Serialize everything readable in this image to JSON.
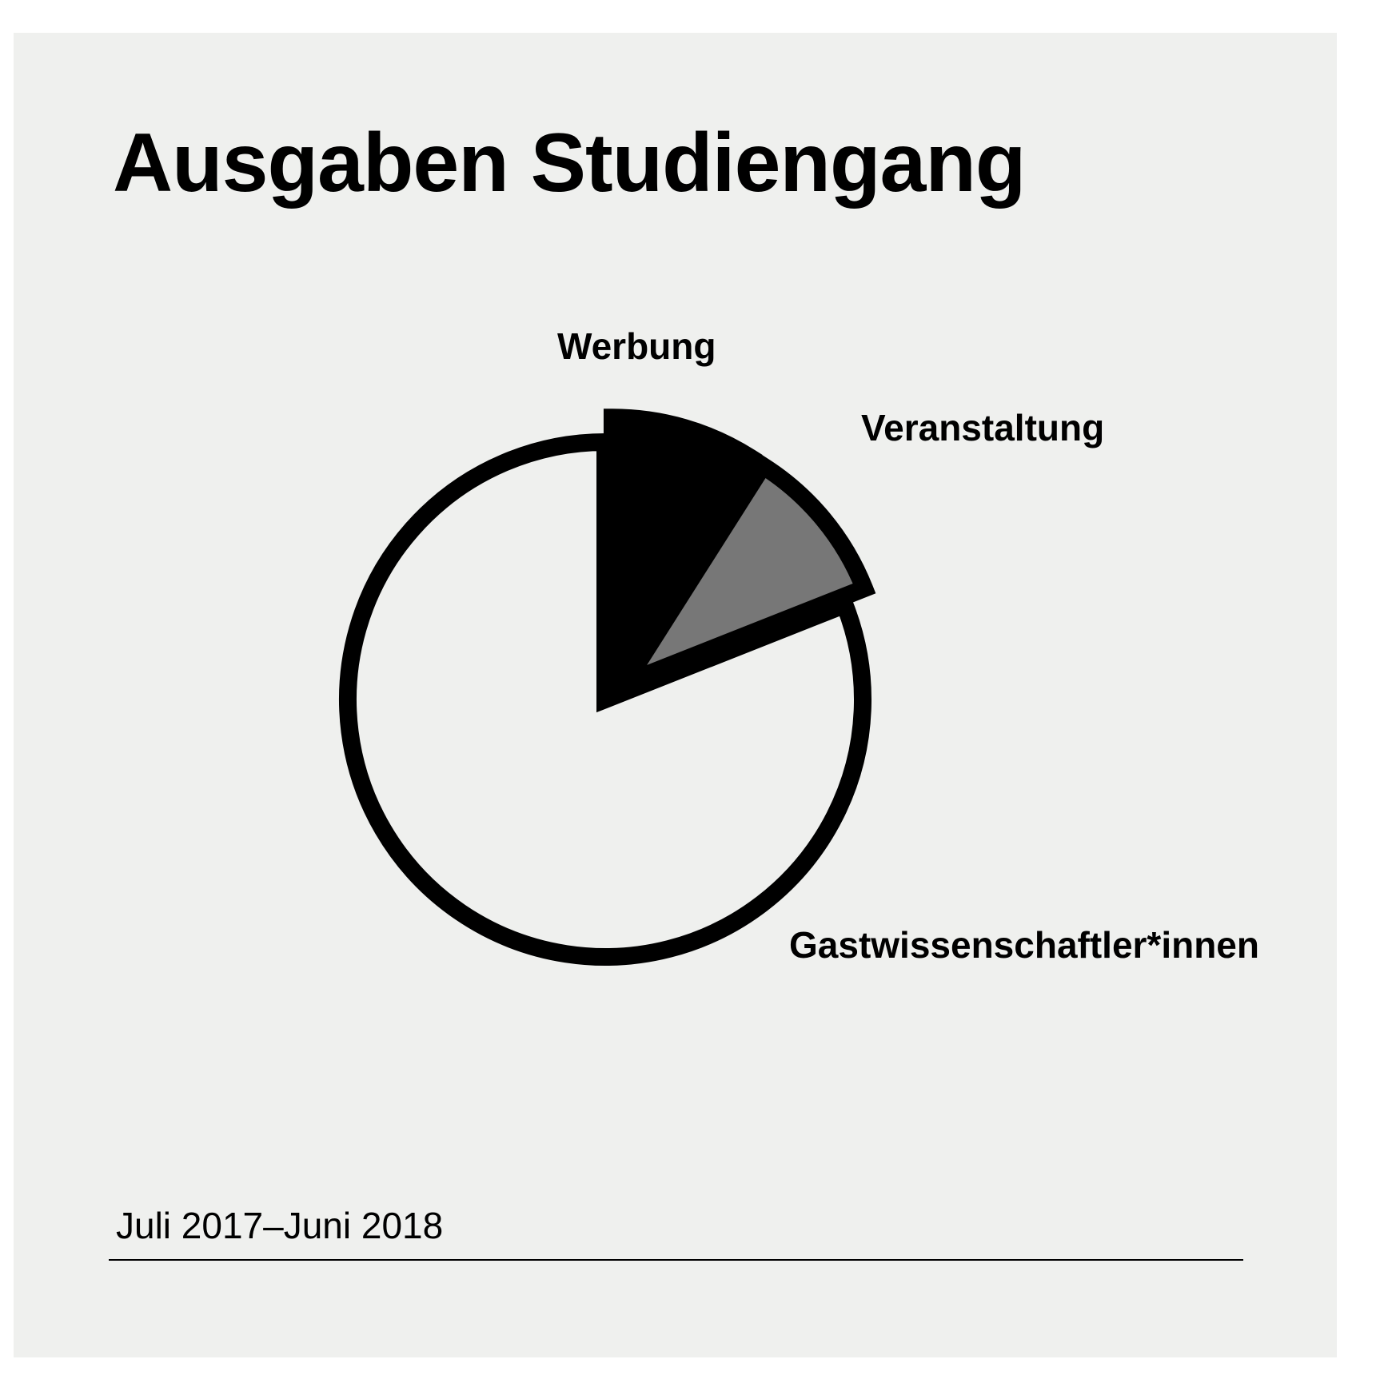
{
  "card": {
    "background": "#eff0ee"
  },
  "chart_data": {
    "type": "pie",
    "title": "Ausgaben Studiengang",
    "subtitle": "Juli 2017–Juni 2018",
    "legend": "none",
    "data_labels": "outside",
    "slices": [
      {
        "label": "Werbung",
        "value": 9,
        "color": "#000000",
        "exploded": true
      },
      {
        "label": "Veranstaltung",
        "value": 10,
        "color": "#777777",
        "exploded": true
      },
      {
        "label": "Gastwissenschaftler*innen",
        "value": 81,
        "color": "#eff0ee",
        "exploded": false
      }
    ]
  }
}
